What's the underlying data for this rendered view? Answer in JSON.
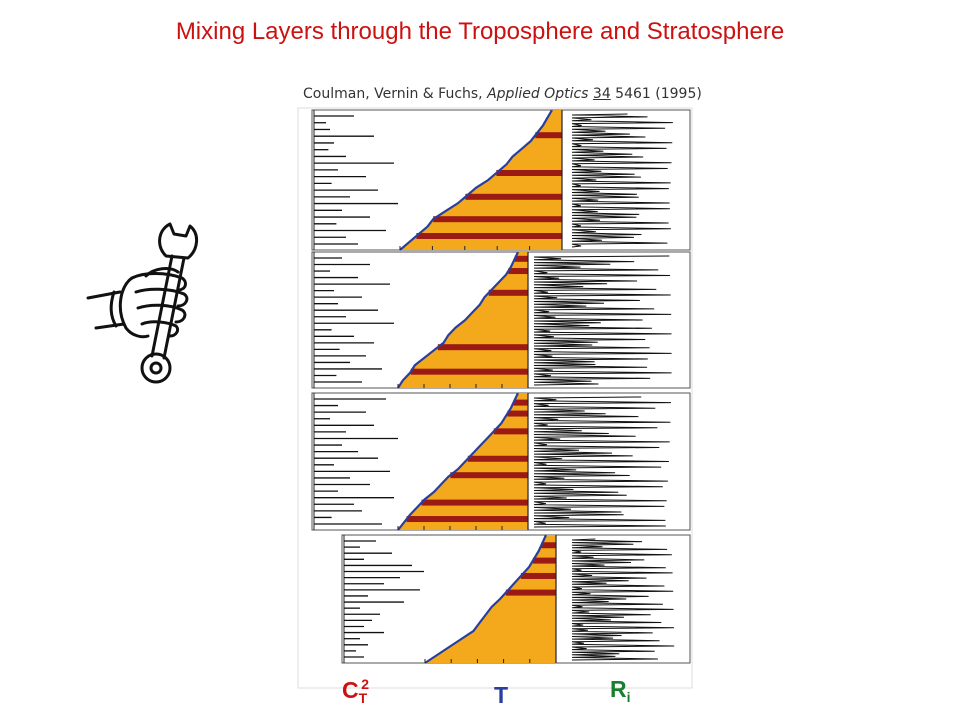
{
  "title": "Mixing Layers through the Troposphere and Stratosphere",
  "citation": {
    "authors": "Coulman, Vernin & Fuchs, ",
    "journal": "Applied Optics",
    "volume": "34",
    "rest": " 5461 (1995)"
  },
  "labels": {
    "ct2_main": "C",
    "ct2_sub": "T",
    "ct2_sup": "2",
    "t": "T",
    "ri_main": "R",
    "ri_sub": "i"
  },
  "icons": {
    "wrench": "hand-wrench-icon"
  },
  "panels": [
    {
      "ct2_spikes": [
        0.4,
        0.05,
        0.1,
        0.65,
        0.15,
        0.08,
        0.3,
        0.9,
        0.2,
        0.55,
        0.12,
        0.7,
        0.35,
        0.95,
        0.25,
        0.6,
        0.18,
        0.8,
        0.3,
        0.45
      ],
      "t_profile": [
        0.0,
        0.06,
        0.12,
        0.18,
        0.22,
        0.3,
        0.38,
        0.44,
        0.5,
        0.58,
        0.64,
        0.7,
        0.74,
        0.8,
        0.86,
        0.9,
        0.94,
        0.97,
        1.0
      ],
      "layers": [
        0.1,
        0.22,
        0.38,
        0.55,
        0.82
      ]
    },
    {
      "ct2_spikes": [
        0.25,
        0.6,
        0.1,
        0.45,
        0.85,
        0.15,
        0.5,
        0.2,
        0.7,
        0.3,
        0.9,
        0.12,
        0.4,
        0.65,
        0.22,
        0.55,
        0.35,
        0.75,
        0.18,
        0.5
      ],
      "t_profile": [
        0.0,
        0.04,
        0.1,
        0.14,
        0.22,
        0.3,
        0.38,
        0.42,
        0.48,
        0.56,
        0.62,
        0.68,
        0.72,
        0.78,
        0.84,
        0.9,
        0.94,
        0.97,
        1.0
      ],
      "layers": [
        0.12,
        0.3,
        0.7,
        0.86,
        0.95
      ]
    },
    {
      "ct2_spikes": [
        0.8,
        0.2,
        0.55,
        0.1,
        0.65,
        0.3,
        0.95,
        0.25,
        0.45,
        0.7,
        0.15,
        0.85,
        0.35,
        0.6,
        0.2,
        0.9,
        0.4,
        0.5,
        0.12,
        0.75
      ],
      "t_profile": [
        0.0,
        0.05,
        0.1,
        0.16,
        0.22,
        0.3,
        0.36,
        0.42,
        0.5,
        0.56,
        0.62,
        0.68,
        0.74,
        0.8,
        0.86,
        0.9,
        0.94,
        0.97,
        1.0
      ],
      "layers": [
        0.08,
        0.2,
        0.4,
        0.52,
        0.72,
        0.85,
        0.93
      ]
    },
    {
      "ct2_spikes": [
        0.3,
        0.1,
        0.5,
        0.15,
        0.75,
        0.9,
        0.6,
        0.4,
        0.85,
        0.2,
        0.65,
        0.1,
        0.35,
        0.25,
        0.15,
        0.4,
        0.1,
        0.2,
        0.05,
        0.15
      ],
      "t_profile": [
        0.0,
        0.1,
        0.2,
        0.3,
        0.4,
        0.45,
        0.5,
        0.55,
        0.62,
        0.68,
        0.74,
        0.8,
        0.86,
        0.9,
        0.94,
        0.97,
        1.0
      ],
      "layers": [
        0.55,
        0.68,
        0.8,
        0.92
      ]
    }
  ]
}
